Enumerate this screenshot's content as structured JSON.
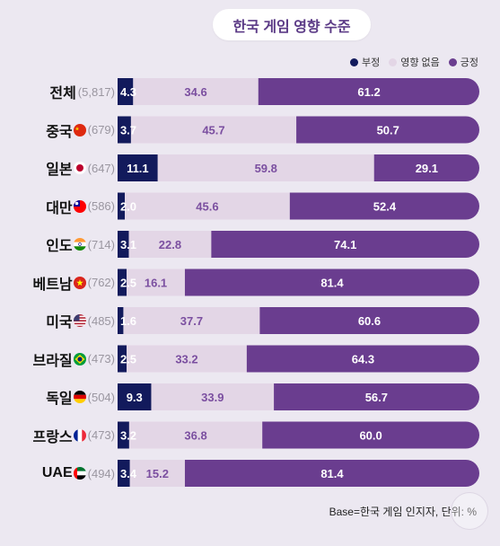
{
  "header": {
    "title": "한국 게임 영향 수준"
  },
  "legend": [
    {
      "label": "부정",
      "color": "#121a5c"
    },
    {
      "label": "영향 없음",
      "color": "#e3d6e6"
    },
    {
      "label": "긍정",
      "color": "#6a3d8f"
    }
  ],
  "footer": {
    "note": "Base=한국 게임 인지자, 단위: %"
  },
  "chart_data": {
    "type": "bar",
    "orientation": "horizontal",
    "stacked": true,
    "title": "한국 게임 영향 수준",
    "unit": "%",
    "legend_position": "top-right",
    "categories": [
      "전체",
      "중국",
      "일본",
      "대만",
      "인도",
      "베트남",
      "미국",
      "브라질",
      "독일",
      "프랑스",
      "UAE"
    ],
    "bases": [
      "(5,817)",
      "(679)",
      "(647)",
      "(586)",
      "(714)",
      "(762)",
      "(485)",
      "(473)",
      "(504)",
      "(473)",
      "(494)"
    ],
    "flags": [
      "",
      "china-flag-icon",
      "japan-flag-icon",
      "taiwan-flag-icon",
      "india-flag-icon",
      "vietnam-flag-icon",
      "usa-flag-icon",
      "brazil-flag-icon",
      "germany-flag-icon",
      "france-flag-icon",
      "uae-flag-icon"
    ],
    "series": [
      {
        "name": "부정",
        "color": "#121a5c",
        "label_color": "#ffffff",
        "values": [
          4.3,
          3.7,
          11.1,
          2.0,
          3.1,
          2.5,
          1.6,
          2.5,
          9.3,
          3.2,
          3.4
        ],
        "labels": [
          "4.3",
          "3.7",
          "11.1",
          "2.0",
          "3.1",
          "2.5",
          "1.6",
          "2.5",
          "9.3",
          "3.2",
          "3.4"
        ]
      },
      {
        "name": "영향 없음",
        "color": "#e3d6e6",
        "label_color": "#7b4fa0",
        "values": [
          34.6,
          45.7,
          59.8,
          45.6,
          22.8,
          16.1,
          37.7,
          33.2,
          33.9,
          36.8,
          15.2
        ],
        "labels": [
          "34.6",
          "45.7",
          "59.8",
          "45.6",
          "22.8",
          "16.1",
          "37.7",
          "33.2",
          "33.9",
          "36.8",
          "15.2"
        ]
      },
      {
        "name": "긍정",
        "color": "#6a3d8f",
        "label_color": "#ffffff",
        "values": [
          61.2,
          50.7,
          29.1,
          52.4,
          74.1,
          81.4,
          60.6,
          64.3,
          56.7,
          60.0,
          81.4
        ],
        "labels": [
          "61.2",
          "50.7",
          "29.1",
          "52.4",
          "74.1",
          "81.4",
          "60.6",
          "64.3",
          "56.7",
          "60.0",
          "81.4"
        ]
      }
    ],
    "xlim": [
      0,
      100
    ],
    "grid": false
  }
}
